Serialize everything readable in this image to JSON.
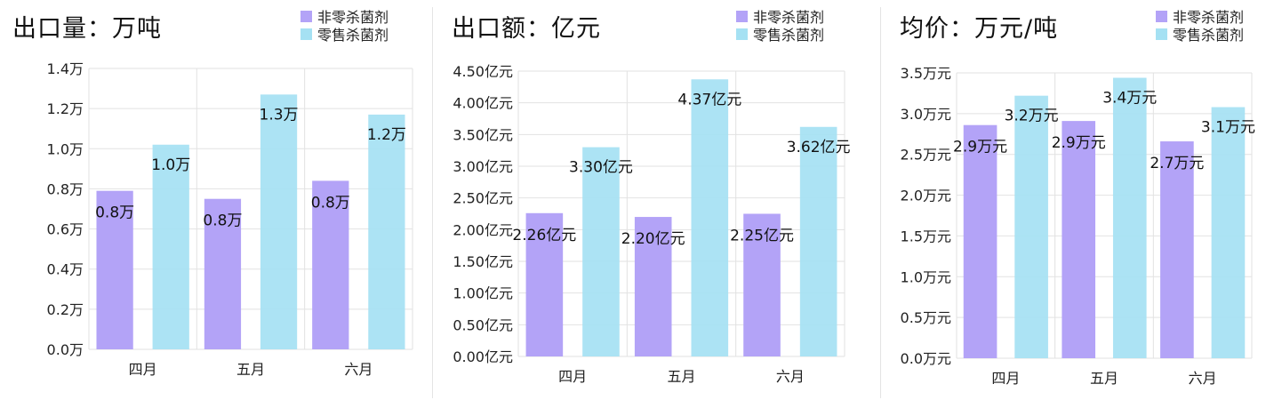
{
  "colors": {
    "series_0": "#b3a3f7",
    "series_1": "#a5e1f3",
    "grid": "#e2e2e2",
    "text": "#222222"
  },
  "chart_data": [
    {
      "type": "bar",
      "title": "出口量：万吨",
      "categories": [
        "四月",
        "五月",
        "六月"
      ],
      "ylim": [
        0,
        1.4
      ],
      "yticks": [
        "0.0万",
        "0.2万",
        "0.4万",
        "0.6万",
        "0.8万",
        "1.0万",
        "1.2万",
        "1.4万"
      ],
      "series": [
        {
          "name": "非零杀菌剂",
          "values": [
            0.79,
            0.75,
            0.84
          ],
          "labels": [
            "0.8万",
            "0.8万",
            "0.8万"
          ]
        },
        {
          "name": "零售杀菌剂",
          "values": [
            1.02,
            1.27,
            1.17
          ],
          "labels": [
            "1.0万",
            "1.3万",
            "1.2万"
          ]
        }
      ],
      "grid": true,
      "legend": "top-right"
    },
    {
      "type": "bar",
      "title": "出口额：亿元",
      "categories": [
        "四月",
        "五月",
        "六月"
      ],
      "ylim": [
        0,
        4.5
      ],
      "yticks": [
        "0.00亿元",
        "0.50亿元",
        "1.00亿元",
        "1.50亿元",
        "2.00亿元",
        "2.50亿元",
        "3.00亿元",
        "3.50亿元",
        "4.00亿元",
        "4.50亿元"
      ],
      "series": [
        {
          "name": "非零杀菌剂",
          "values": [
            2.26,
            2.2,
            2.25
          ],
          "labels": [
            "2.26亿元",
            "2.20亿元",
            "2.25亿元"
          ]
        },
        {
          "name": "零售杀菌剂",
          "values": [
            3.3,
            4.37,
            3.62
          ],
          "labels": [
            "3.30亿元",
            "4.37亿元",
            "3.62亿元"
          ]
        }
      ],
      "grid": true,
      "legend": "top-right"
    },
    {
      "type": "bar",
      "title": "均价：万元/吨",
      "categories": [
        "四月",
        "五月",
        "六月"
      ],
      "ylim": [
        0,
        3.5
      ],
      "yticks": [
        "0.0万元",
        "0.5万元",
        "1.0万元",
        "1.5万元",
        "2.0万元",
        "2.5万元",
        "3.0万元",
        "3.5万元"
      ],
      "series": [
        {
          "name": "非零杀菌剂",
          "values": [
            2.86,
            2.91,
            2.66
          ],
          "labels": [
            "2.9万元",
            "2.9万元",
            "2.7万元"
          ]
        },
        {
          "name": "零售杀菌剂",
          "values": [
            3.22,
            3.44,
            3.08
          ],
          "labels": [
            "3.2万元",
            "3.4万元",
            "3.1万元"
          ]
        }
      ],
      "grid": true,
      "legend": "top-right"
    }
  ]
}
